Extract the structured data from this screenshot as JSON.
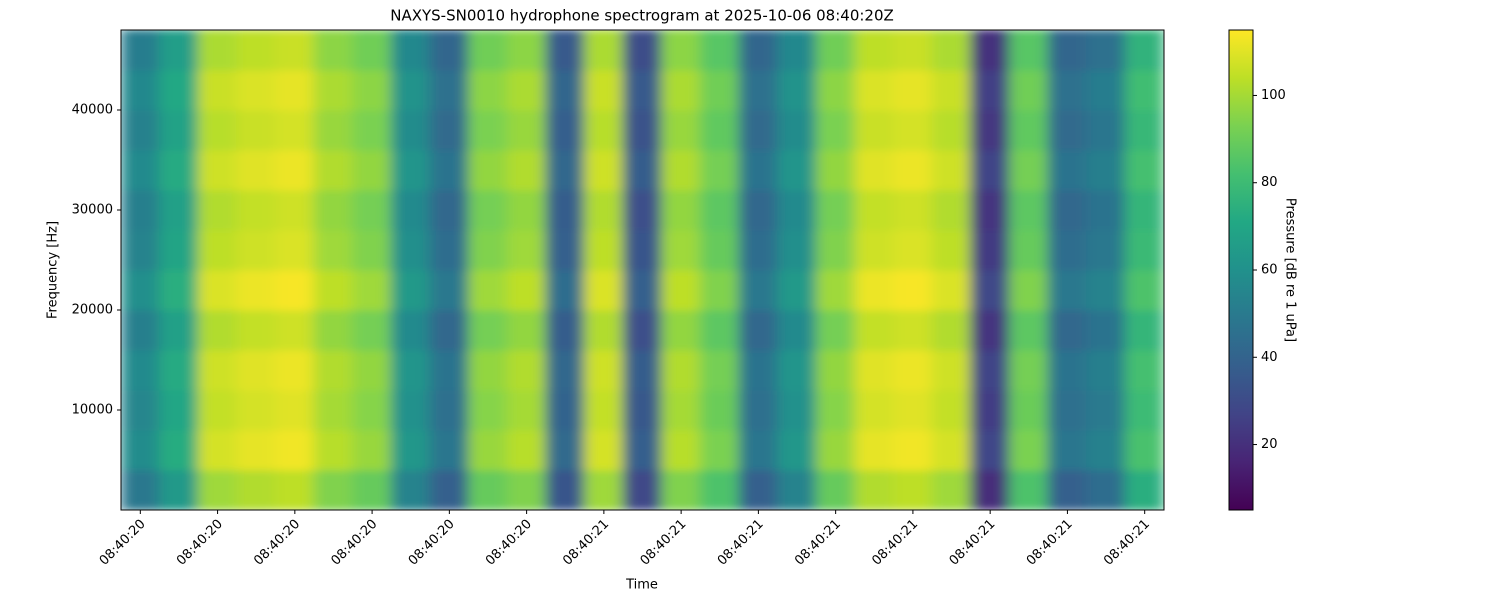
{
  "chart_data": {
    "type": "spectrogram",
    "title": "NAXYS-SN0010 hydrophone spectrogram at 2025-10-06 08:40:20Z",
    "x_label": "Time",
    "y_label": "Frequency [Hz]",
    "colorbar_label": "Pressure [dB re 1 uPa]",
    "categories": [
      "08:40:20",
      null,
      "08:40:20",
      null,
      "08:40:20",
      null,
      "08:40:20",
      null,
      "08:40:20",
      null,
      "08:40:20",
      null,
      "08:40:21",
      null,
      "08:40:21",
      null,
      "08:40:21",
      null,
      "08:40:21",
      null,
      "08:40:21",
      null,
      "08:40:21",
      null,
      "08:40:21",
      null,
      "08:40:21"
    ],
    "y_edges": [
      0,
      4000,
      8000,
      12000,
      16000,
      20000,
      24000,
      28000,
      32000,
      36000,
      40000,
      44000,
      48000
    ],
    "ylim": [
      0,
      48000
    ],
    "yticks": [
      10000,
      20000,
      30000,
      40000
    ],
    "clim": [
      5,
      115
    ],
    "cticks": [
      20,
      40,
      60,
      80,
      100
    ],
    "cmap": "viridis",
    "values": [
      [
        49,
        64,
        99,
        102,
        104,
        94,
        89,
        54,
        39,
        89,
        94,
        34,
        99,
        29,
        94,
        84,
        39,
        54,
        89,
        102,
        104,
        99,
        19,
        84,
        39,
        44,
        74
      ],
      [
        58,
        73,
        108,
        111,
        113,
        103,
        98,
        63,
        48,
        98,
        103,
        43,
        108,
        38,
        103,
        93,
        48,
        63,
        98,
        111,
        113,
        108,
        28,
        93,
        48,
        53,
        83
      ],
      [
        55,
        70,
        105,
        108,
        110,
        100,
        95,
        60,
        45,
        95,
        100,
        40,
        105,
        35,
        100,
        90,
        45,
        60,
        95,
        108,
        110,
        105,
        25,
        90,
        45,
        50,
        80
      ],
      [
        57,
        72,
        107,
        110,
        112,
        102,
        97,
        62,
        47,
        97,
        102,
        42,
        107,
        37,
        102,
        92,
        47,
        62,
        97,
        110,
        112,
        107,
        27,
        92,
        47,
        52,
        82
      ],
      [
        52,
        67,
        102,
        105,
        107,
        97,
        92,
        57,
        42,
        92,
        97,
        37,
        102,
        32,
        97,
        87,
        42,
        57,
        92,
        105,
        107,
        102,
        22,
        87,
        42,
        47,
        77
      ],
      [
        59,
        74,
        109,
        112,
        114,
        104,
        99,
        64,
        49,
        99,
        104,
        44,
        109,
        39,
        104,
        94,
        49,
        64,
        99,
        112,
        114,
        109,
        29,
        94,
        49,
        54,
        84
      ],
      [
        54,
        69,
        104,
        107,
        109,
        99,
        94,
        59,
        44,
        94,
        99,
        39,
        104,
        34,
        99,
        89,
        44,
        59,
        94,
        107,
        109,
        104,
        24,
        89,
        44,
        49,
        79
      ],
      [
        52,
        67,
        102,
        105,
        107,
        97,
        92,
        57,
        42,
        92,
        97,
        37,
        102,
        32,
        97,
        87,
        42,
        57,
        92,
        105,
        107,
        102,
        22,
        87,
        42,
        47,
        77
      ],
      [
        57,
        72,
        107,
        110,
        112,
        102,
        97,
        62,
        47,
        97,
        102,
        42,
        107,
        37,
        102,
        92,
        47,
        62,
        97,
        110,
        112,
        107,
        27,
        92,
        47,
        52,
        82
      ],
      [
        53,
        68,
        103,
        106,
        108,
        98,
        93,
        58,
        43,
        93,
        98,
        38,
        103,
        33,
        98,
        88,
        43,
        58,
        93,
        106,
        108,
        103,
        23,
        88,
        43,
        48,
        78
      ],
      [
        56,
        71,
        106,
        109,
        111,
        101,
        96,
        61,
        46,
        96,
        101,
        41,
        106,
        36,
        101,
        91,
        46,
        61,
        96,
        109,
        111,
        106,
        26,
        91,
        46,
        51,
        81
      ],
      [
        51,
        66,
        101,
        104,
        106,
        96,
        91,
        56,
        41,
        91,
        96,
        36,
        101,
        31,
        96,
        86,
        41,
        56,
        91,
        104,
        106,
        101,
        21,
        86,
        41,
        46,
        76
      ]
    ]
  }
}
